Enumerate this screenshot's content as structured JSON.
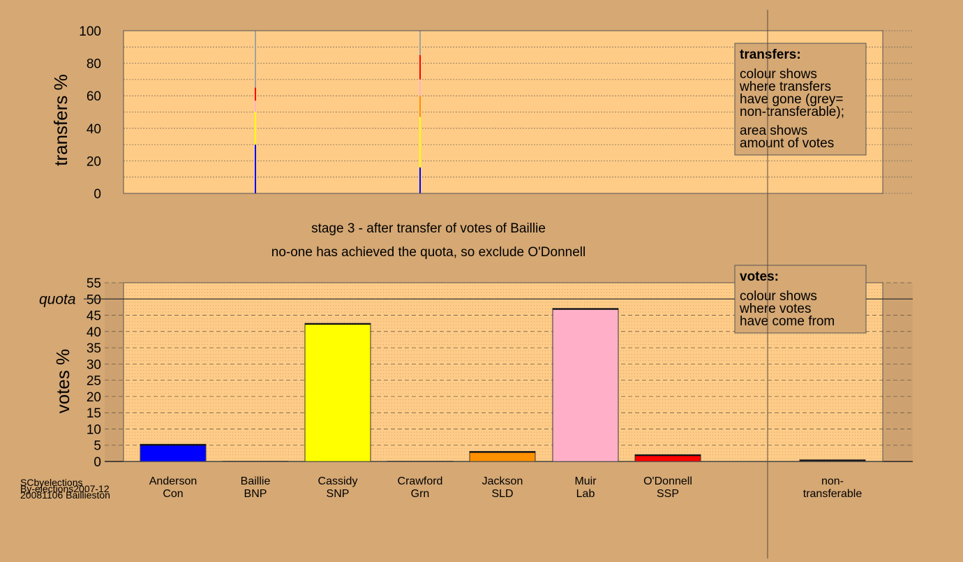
{
  "footer": {
    "line1": "SCbyelections",
    "line2": "By-elections2007-12",
    "line3": "20081106 Baillieston"
  },
  "header": {
    "stage_title": "stage 3 - after transfer of votes of Baillie",
    "stage_note": "no-one has achieved the quota, so exclude O'Donnell"
  },
  "legend_transfers": {
    "title": "transfers:",
    "lines": [
      "colour shows",
      "where transfers",
      "have gone (grey=",
      "non-transferable);",
      "area shows",
      "amount of votes"
    ]
  },
  "legend_votes": {
    "title": "votes:",
    "lines": [
      "colour shows",
      "where votes",
      "have come from"
    ]
  },
  "colors": {
    "background": "#d5a874",
    "plot_bg": "#ffcc88",
    "Con": "#0000ff",
    "BNP": "#000080",
    "SNP": "#ffff00",
    "Grn": "#00a000",
    "SLD": "#ff9000",
    "Lab": "#ffb0c8",
    "SSP": "#ff0000",
    "non_transferable": "#a0a0a0"
  },
  "candidates": [
    {
      "name": "Anderson",
      "party": "Con",
      "color": "#0000ff"
    },
    {
      "name": "Baillie",
      "party": "BNP",
      "color": "#000080"
    },
    {
      "name": "Cassidy",
      "party": "SNP",
      "color": "#ffff00"
    },
    {
      "name": "Crawford",
      "party": "Grn",
      "color": "#00a000"
    },
    {
      "name": "Jackson",
      "party": "SLD",
      "color": "#ff9000"
    },
    {
      "name": "Muir",
      "party": "Lab",
      "color": "#ffb0c8"
    },
    {
      "name": "O'Donnell",
      "party": "SSP",
      "color": "#ff0000"
    },
    {
      "name": "non-",
      "party": "transferable",
      "color": "#800080"
    }
  ],
  "chart_data": [
    {
      "type": "bar",
      "ylabel": "transfers %",
      "ylim": [
        0,
        100
      ],
      "yticks": [
        0,
        20,
        40,
        60,
        80,
        100
      ],
      "grid": true,
      "columns": [
        {
          "candidate": "Baillie",
          "segments": [
            {
              "to": "Con",
              "color": "#0000ff",
              "from": 0,
              "to_pct": 30
            },
            {
              "to": "SNP",
              "color": "#ffff00",
              "from": 30,
              "to_pct": 50
            },
            {
              "to": "Lab",
              "color": "#ffb0c8",
              "from": 50,
              "to_pct": 57
            },
            {
              "to": "SSP",
              "color": "#ff0000",
              "from": 57,
              "to_pct": 65
            },
            {
              "to": "non-transferable",
              "color": "#a0a0a0",
              "from": 65,
              "to_pct": 100
            }
          ]
        },
        {
          "candidate": "Crawford",
          "segments": [
            {
              "to": "Con",
              "color": "#0000ff",
              "from": 0,
              "to_pct": 16
            },
            {
              "to": "SNP",
              "color": "#ffff00",
              "from": 16,
              "to_pct": 47
            },
            {
              "to": "SLD",
              "color": "#ff9000",
              "from": 47,
              "to_pct": 60
            },
            {
              "to": "Lab",
              "color": "#ffb0c8",
              "from": 60,
              "to_pct": 70
            },
            {
              "to": "SSP",
              "color": "#ff0000",
              "from": 70,
              "to_pct": 85
            },
            {
              "to": "non-transferable",
              "color": "#a0a0a0",
              "from": 85,
              "to_pct": 100
            }
          ]
        }
      ]
    },
    {
      "type": "bar",
      "ylabel": "votes %",
      "ylim": [
        0,
        55
      ],
      "yticks": [
        0,
        5,
        10,
        15,
        20,
        25,
        30,
        35,
        40,
        45,
        50,
        55
      ],
      "quota": 50,
      "quota_label": "quota",
      "grid": true,
      "categories": [
        "Anderson Con",
        "Baillie BNP",
        "Cassidy SNP",
        "Crawford Grn",
        "Jackson SLD",
        "Muir Lab",
        "O'Donnell SSP",
        "non-transferable"
      ],
      "values": [
        5.3,
        0,
        42.5,
        0,
        3.1,
        47.1,
        2.1,
        0.5
      ]
    }
  ]
}
